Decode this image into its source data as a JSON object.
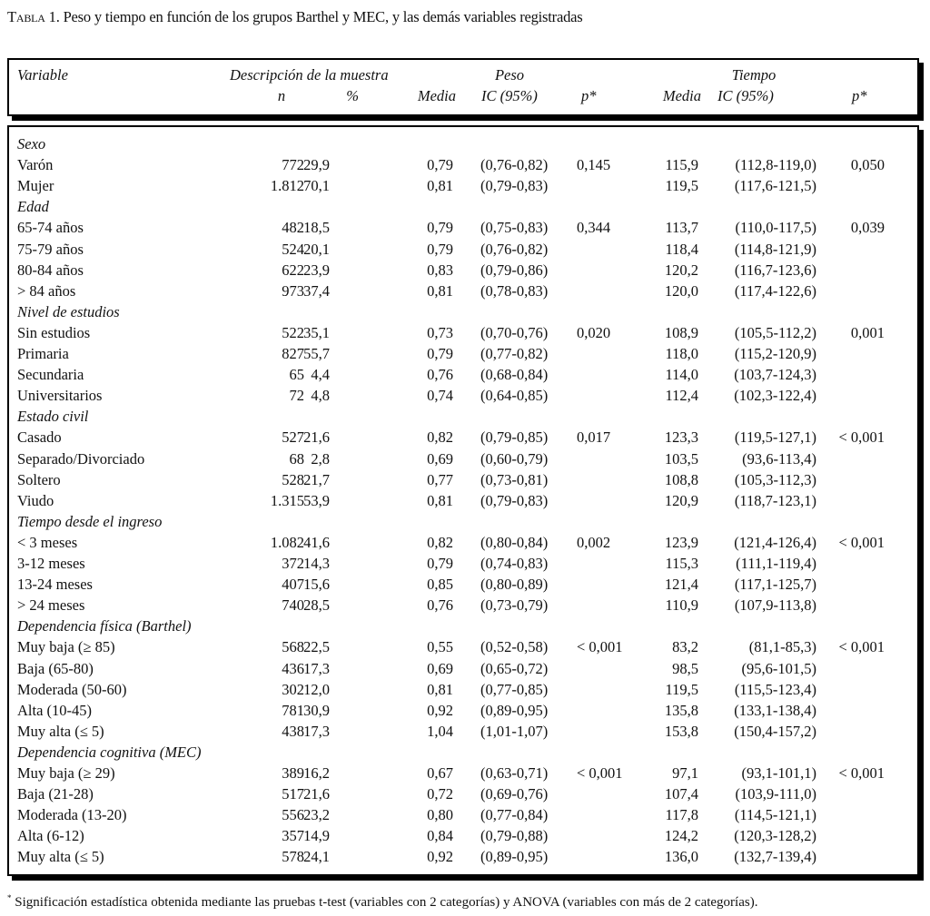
{
  "caption": {
    "label": "Tabla",
    "number": " 1. ",
    "text": "Peso y tiempo en función de los grupos Barthel y MEC, y las demás variables registradas"
  },
  "header": {
    "variable": "Variable",
    "descripcion": "Descripción de la muestra",
    "peso": "Peso",
    "tiempo": "Tiempo",
    "n": "n",
    "pct": "%",
    "media": "Media",
    "ic": "IC (95%)",
    "p": "p*",
    "media2": "Media",
    "ic2": "IC (95%)",
    "p2": "p*"
  },
  "rows": [
    {
      "group": "Sexo"
    },
    {
      "label": "Varón",
      "n": "772",
      "pct": "29,9",
      "pm": "0,79",
      "pic": "(0,76-0,82)",
      "pp": "0,145",
      "tm": "115,9",
      "tic": "(112,8-119,0)",
      "tp": "0,050"
    },
    {
      "label": "Mujer",
      "n": "1.812",
      "pct": "70,1",
      "pm": "0,81",
      "pic": "(0,79-0,83)",
      "pp": "",
      "tm": "119,5",
      "tic": "(117,6-121,5)",
      "tp": ""
    },
    {
      "group": "Edad"
    },
    {
      "label": "65-74 años",
      "n": "482",
      "pct": "18,5",
      "pm": "0,79",
      "pic": "(0,75-0,83)",
      "pp": "0,344",
      "tm": "113,7",
      "tic": "(110,0-117,5)",
      "tp": "0,039"
    },
    {
      "label": "75-79 años",
      "n": "524",
      "pct": "20,1",
      "pm": "0,79",
      "pic": "(0,76-0,82)",
      "pp": "",
      "tm": "118,4",
      "tic": "(114,8-121,9)",
      "tp": ""
    },
    {
      "label": "80-84 años",
      "n": "622",
      "pct": "23,9",
      "pm": "0,83",
      "pic": "(0,79-0,86)",
      "pp": "",
      "tm": "120,2",
      "tic": "(116,7-123,6)",
      "tp": ""
    },
    {
      "label": "> 84 años",
      "n": "973",
      "pct": "37,4",
      "pm": "0,81",
      "pic": "(0,78-0,83)",
      "pp": "",
      "tm": "120,0",
      "tic": "(117,4-122,6)",
      "tp": ""
    },
    {
      "group": "Nivel de estudios"
    },
    {
      "label": "Sin estudios",
      "n": "522",
      "pct": "35,1",
      "pm": "0,73",
      "pic": "(0,70-0,76)",
      "pp": "0,020",
      "tm": "108,9",
      "tic": "(105,5-112,2)",
      "tp": "0,001"
    },
    {
      "label": "Primaria",
      "n": "827",
      "pct": "55,7",
      "pm": "0,79",
      "pic": "(0,77-0,82)",
      "pp": "",
      "tm": "118,0",
      "tic": "(115,2-120,9)",
      "tp": ""
    },
    {
      "label": "Secundaria",
      "n": "65",
      "pct": "4,4",
      "pm": "0,76",
      "pic": "(0,68-0,84)",
      "pp": "",
      "tm": "114,0",
      "tic": "(103,7-124,3)",
      "tp": ""
    },
    {
      "label": "Universitarios",
      "n": "72",
      "pct": "4,8",
      "pm": "0,74",
      "pic": "(0,64-0,85)",
      "pp": "",
      "tm": "112,4",
      "tic": "(102,3-122,4)",
      "tp": ""
    },
    {
      "group": "Estado civil"
    },
    {
      "label": "Casado",
      "n": "527",
      "pct": "21,6",
      "pm": "0,82",
      "pic": "(0,79-0,85)",
      "pp": "0,017",
      "tm": "123,3",
      "tic": "(119,5-127,1)",
      "tp": "< 0,001"
    },
    {
      "label": "Separado/Divorciado",
      "n": "68",
      "pct": "2,8",
      "pm": "0,69",
      "pic": "(0,60-0,79)",
      "pp": "",
      "tm": "103,5",
      "tic": "(93,6-113,4)",
      "tp": ""
    },
    {
      "label": "Soltero",
      "n": "528",
      "pct": "21,7",
      "pm": "0,77",
      "pic": "(0,73-0,81)",
      "pp": "",
      "tm": "108,8",
      "tic": "(105,3-112,3)",
      "tp": ""
    },
    {
      "label": "Viudo",
      "n": "1.315",
      "pct": "53,9",
      "pm": "0,81",
      "pic": "(0,79-0,83)",
      "pp": "",
      "tm": "120,9",
      "tic": "(118,7-123,1)",
      "tp": ""
    },
    {
      "group": "Tiempo desde el ingreso"
    },
    {
      "label": "< 3 meses",
      "n": "1.082",
      "pct": "41,6",
      "pm": "0,82",
      "pic": "(0,80-0,84)",
      "pp": "0,002",
      "tm": "123,9",
      "tic": "(121,4-126,4)",
      "tp": "< 0,001"
    },
    {
      "label": "3-12 meses",
      "n": "372",
      "pct": "14,3",
      "pm": "0,79",
      "pic": "(0,74-0,83)",
      "pp": "",
      "tm": "115,3",
      "tic": "(111,1-119,4)",
      "tp": ""
    },
    {
      "label": "13-24 meses",
      "n": "407",
      "pct": "15,6",
      "pm": "0,85",
      "pic": "(0,80-0,89)",
      "pp": "",
      "tm": "121,4",
      "tic": "(117,1-125,7)",
      "tp": ""
    },
    {
      "label": "> 24 meses",
      "n": "740",
      "pct": "28,5",
      "pm": "0,76",
      "pic": "(0,73-0,79)",
      "pp": "",
      "tm": "110,9",
      "tic": "(107,9-113,8)",
      "tp": ""
    },
    {
      "group": "Dependencia física (Barthel)"
    },
    {
      "label": "Muy baja (≥ 85)",
      "n": "568",
      "pct": "22,5",
      "pm": "0,55",
      "pic": "(0,52-0,58)",
      "pp": "< 0,001",
      "tm": "83,2",
      "tic": "(81,1-85,3)",
      "tp": "< 0,001"
    },
    {
      "label": "Baja (65-80)",
      "n": "436",
      "pct": "17,3",
      "pm": "0,69",
      "pic": "(0,65-0,72)",
      "pp": "",
      "tm": "98,5",
      "tic": "(95,6-101,5)",
      "tp": ""
    },
    {
      "label": "Moderada (50-60)",
      "n": "302",
      "pct": "12,0",
      "pm": "0,81",
      "pic": "(0,77-0,85)",
      "pp": "",
      "tm": "119,5",
      "tic": "(115,5-123,4)",
      "tp": ""
    },
    {
      "label": "Alta (10-45)",
      "n": "781",
      "pct": "30,9",
      "pm": "0,92",
      "pic": "(0,89-0,95)",
      "pp": "",
      "tm": "135,8",
      "tic": "(133,1-138,4)",
      "tp": ""
    },
    {
      "label": "Muy alta (≤ 5)",
      "n": "438",
      "pct": "17,3",
      "pm": "1,04",
      "pic": "(1,01-1,07)",
      "pp": "",
      "tm": "153,8",
      "tic": "(150,4-157,2)",
      "tp": ""
    },
    {
      "group": "Dependencia cognitiva (MEC)"
    },
    {
      "label": "Muy baja (≥ 29)",
      "n": "389",
      "pct": "16,2",
      "pm": "0,67",
      "pic": "(0,63-0,71)",
      "pp": "< 0,001",
      "tm": "97,1",
      "tic": "(93,1-101,1)",
      "tp": "< 0,001"
    },
    {
      "label": "Baja (21-28)",
      "n": "517",
      "pct": "21,6",
      "pm": "0,72",
      "pic": "(0,69-0,76)",
      "pp": "",
      "tm": "107,4",
      "tic": "(103,9-111,0)",
      "tp": ""
    },
    {
      "label": "Moderada (13-20)",
      "n": "556",
      "pct": "23,2",
      "pm": "0,80",
      "pic": "(0,77-0,84)",
      "pp": "",
      "tm": "117,8",
      "tic": "(114,5-121,1)",
      "tp": ""
    },
    {
      "label": "Alta (6-12)",
      "n": "357",
      "pct": "14,9",
      "pm": "0,84",
      "pic": "(0,79-0,88)",
      "pp": "",
      "tm": "124,2",
      "tic": "(120,3-128,2)",
      "tp": ""
    },
    {
      "label": "Muy alta (≤ 5)",
      "n": "578",
      "pct": "24,1",
      "pm": "0,92",
      "pic": "(0,89-0,95)",
      "pp": "",
      "tm": "136,0",
      "tic": "(132,7-139,4)",
      "tp": ""
    }
  ],
  "footnote": {
    "mark": "*",
    "text": " Significación estadística obtenida mediante las pruebas t-test (variables con 2 categorías) y ANOVA (variables con más de 2 categorías)."
  }
}
